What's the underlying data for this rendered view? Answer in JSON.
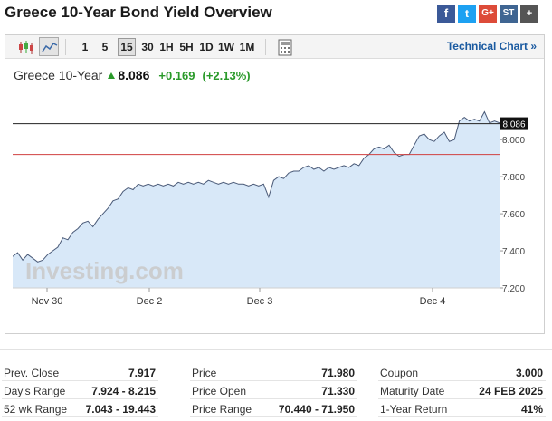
{
  "page": {
    "title": "Greece 10-Year Bond Yield Overview"
  },
  "share_buttons": [
    {
      "name": "facebook",
      "glyph": "f"
    },
    {
      "name": "twitter",
      "glyph": "t"
    },
    {
      "name": "google-plus",
      "glyph": "G+"
    },
    {
      "name": "stocktwits",
      "glyph": "ST"
    },
    {
      "name": "more",
      "glyph": "+"
    }
  ],
  "toolbar": {
    "timeframes": [
      "1",
      "5",
      "15",
      "30",
      "1H",
      "5H",
      "1D",
      "1W",
      "1M"
    ],
    "active_timeframe": "15",
    "technical_chart_label": "Technical Chart »"
  },
  "quote": {
    "name": "Greece 10-Year",
    "price": "8.086",
    "change": "+0.169",
    "change_pct": "(+2.13%)",
    "up_color": "#2a9a2a"
  },
  "chart_data": {
    "type": "area",
    "watermark": "Investing.com",
    "x_ticks": [
      "Nov 30",
      "Dec 2",
      "Dec 3",
      "Dec 4"
    ],
    "ylim": [
      7.2,
      8.25
    ],
    "y_ticks": [
      "8.000",
      "7.800",
      "7.600",
      "7.400",
      "7.200"
    ],
    "current_value": 8.086,
    "current_label": "8.086",
    "reference_level": 7.92,
    "fill_color": "#d8e8f8",
    "line_color": "#4a5a78",
    "reference_color": "#d04040",
    "series": [
      {
        "values": [
          7.37,
          7.39,
          7.35,
          7.38,
          7.36,
          7.34,
          7.35,
          7.38,
          7.4,
          7.42,
          7.47,
          7.46,
          7.5,
          7.52,
          7.55,
          7.56,
          7.53,
          7.57,
          7.6,
          7.63,
          7.67,
          7.68,
          7.72,
          7.74,
          7.73,
          7.76,
          7.75,
          7.76,
          7.75,
          7.76,
          7.75,
          7.76,
          7.75,
          7.77,
          7.76,
          7.77,
          7.76,
          7.77,
          7.76,
          7.78,
          7.77,
          7.76,
          7.77,
          7.76,
          7.77,
          7.76,
          7.76,
          7.75,
          7.76,
          7.75,
          7.76,
          7.69,
          7.78,
          7.8,
          7.79,
          7.82,
          7.83,
          7.83,
          7.85,
          7.86,
          7.84,
          7.85,
          7.83,
          7.85,
          7.84,
          7.85,
          7.86,
          7.85,
          7.87,
          7.86,
          7.9,
          7.92,
          7.95,
          7.96,
          7.95,
          7.97,
          7.93,
          7.91,
          7.92,
          7.92,
          7.97,
          8.02,
          8.03,
          8.0,
          7.99,
          8.02,
          8.04,
          7.99,
          8.0,
          8.1,
          8.12,
          8.1,
          8.11,
          8.1,
          8.15,
          8.09,
          8.1,
          8.09
        ]
      }
    ]
  },
  "stats": [
    [
      {
        "label": "Prev. Close",
        "value": "7.917"
      },
      {
        "label": "Day's Range",
        "value": "7.924 - 8.215"
      },
      {
        "label": "52 wk Range",
        "value": "7.043 - 19.443"
      }
    ],
    [
      {
        "label": "Price",
        "value": "71.980"
      },
      {
        "label": "Price Open",
        "value": "71.330"
      },
      {
        "label": "Price Range",
        "value": "70.440 - 71.950"
      }
    ],
    [
      {
        "label": "Coupon",
        "value": "3.000"
      },
      {
        "label": "Maturity Date",
        "value": "24 FEB 2025"
      },
      {
        "label": "1-Year Return",
        "value": "41%"
      }
    ]
  ]
}
